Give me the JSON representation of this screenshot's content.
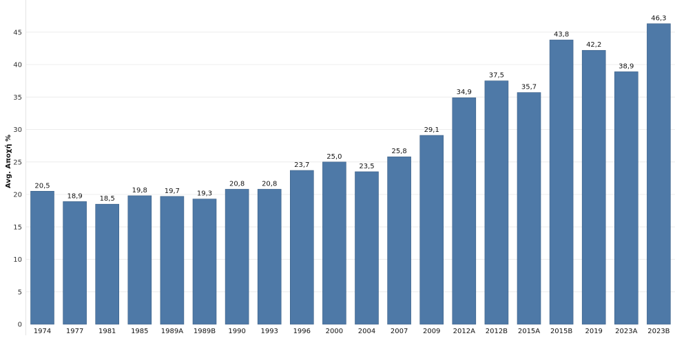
{
  "chart_data": {
    "type": "bar",
    "ylabel": "Avg. Αποχή %",
    "xlabel": "",
    "ylim": [
      0,
      47.5
    ],
    "yticks": [
      0,
      5,
      10,
      15,
      20,
      25,
      30,
      35,
      40,
      45
    ],
    "grid": true,
    "categories": [
      "1974",
      "1977",
      "1981",
      "1985",
      "1989A",
      "1989B",
      "1990",
      "1993",
      "1996",
      "2000",
      "2004",
      "2007",
      "2009",
      "2012A",
      "2012B",
      "2015A",
      "2015B",
      "2019",
      "2023A",
      "2023B"
    ],
    "values": [
      20.5,
      18.9,
      18.5,
      19.8,
      19.7,
      19.3,
      20.8,
      20.8,
      23.7,
      25.0,
      23.5,
      25.8,
      29.1,
      34.9,
      37.5,
      35.7,
      43.8,
      42.2,
      38.9,
      46.3
    ],
    "value_labels": [
      "20,5",
      "18,9",
      "18,5",
      "19,8",
      "19,7",
      "19,3",
      "20,8",
      "20,8",
      "23,7",
      "25,0",
      "23,5",
      "25,8",
      "29,1",
      "34,9",
      "37,5",
      "35,7",
      "43,8",
      "42,2",
      "38,9",
      "46,3"
    ],
    "bar_color": "#4e79a7",
    "bar_edge_color": "#3b5f86"
  }
}
